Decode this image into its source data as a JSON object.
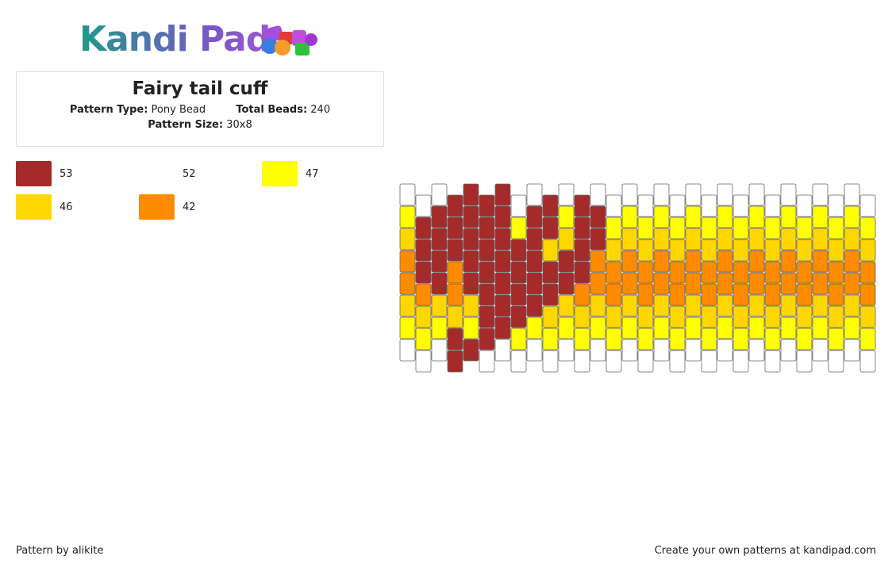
{
  "header": {
    "logo": "Kandi Pad"
  },
  "info": {
    "title": "Fairy tail cuff",
    "type_label": "Pattern Type:",
    "type_value": "Pony Bead",
    "total_label": "Total Beads:",
    "total_value": 240,
    "size_label": "Pattern Size:",
    "size_value": "30x8"
  },
  "legend": [
    {
      "color": "#a52a2a",
      "count": 53
    },
    {
      "color": "#ffffff",
      "count": 52
    },
    {
      "color": "#ffff00",
      "count": 47
    },
    {
      "color": "#ffd700",
      "count": 46
    },
    {
      "color": "#ff8c00",
      "count": 42
    }
  ],
  "pattern": {
    "columns": [
      [
        1,
        2,
        3,
        4,
        4,
        3,
        2,
        1
      ],
      [
        1,
        0,
        0,
        0,
        4,
        3,
        2,
        1
      ],
      [
        1,
        0,
        0,
        0,
        0,
        3,
        2,
        1
      ],
      [
        0,
        0,
        0,
        4,
        4,
        3,
        0,
        0
      ],
      [
        0,
        0,
        0,
        0,
        0,
        3,
        2,
        0
      ],
      [
        0,
        0,
        0,
        0,
        0,
        0,
        0,
        1
      ],
      [
        0,
        0,
        0,
        0,
        0,
        0,
        0,
        1
      ],
      [
        1,
        2,
        0,
        0,
        0,
        0,
        2,
        1
      ],
      [
        1,
        0,
        0,
        0,
        0,
        0,
        2,
        1
      ],
      [
        0,
        0,
        3,
        0,
        0,
        3,
        2,
        1
      ],
      [
        1,
        2,
        3,
        0,
        0,
        3,
        2,
        1
      ],
      [
        0,
        0,
        0,
        0,
        4,
        3,
        2,
        1
      ],
      [
        1,
        0,
        0,
        4,
        4,
        3,
        2,
        1
      ],
      [
        1,
        2,
        3,
        4,
        4,
        3,
        2,
        1
      ],
      [
        1,
        2,
        3,
        4,
        4,
        3,
        2,
        1
      ],
      [
        1,
        2,
        3,
        4,
        4,
        3,
        2,
        1
      ],
      [
        1,
        2,
        3,
        4,
        4,
        3,
        2,
        1
      ],
      [
        1,
        2,
        3,
        4,
        4,
        3,
        2,
        1
      ],
      [
        1,
        2,
        3,
        4,
        4,
        3,
        2,
        1
      ],
      [
        1,
        2,
        3,
        4,
        4,
        3,
        2,
        1
      ],
      [
        1,
        2,
        3,
        4,
        4,
        3,
        2,
        1
      ],
      [
        1,
        2,
        3,
        4,
        4,
        3,
        2,
        1
      ],
      [
        1,
        2,
        3,
        4,
        4,
        3,
        2,
        1
      ],
      [
        1,
        2,
        3,
        4,
        4,
        3,
        2,
        1
      ],
      [
        1,
        2,
        3,
        4,
        4,
        3,
        2,
        1
      ],
      [
        1,
        2,
        3,
        4,
        4,
        3,
        2,
        1
      ],
      [
        1,
        2,
        3,
        4,
        4,
        3,
        2,
        1
      ],
      [
        1,
        2,
        3,
        4,
        4,
        3,
        2,
        1
      ],
      [
        1,
        2,
        3,
        4,
        4,
        3,
        2,
        1
      ],
      [
        1,
        2,
        3,
        4,
        4,
        3,
        2,
        1
      ]
    ]
  },
  "footer": {
    "credit": "Pattern by alikite",
    "promo": "Create your own patterns at kandipad.com"
  }
}
